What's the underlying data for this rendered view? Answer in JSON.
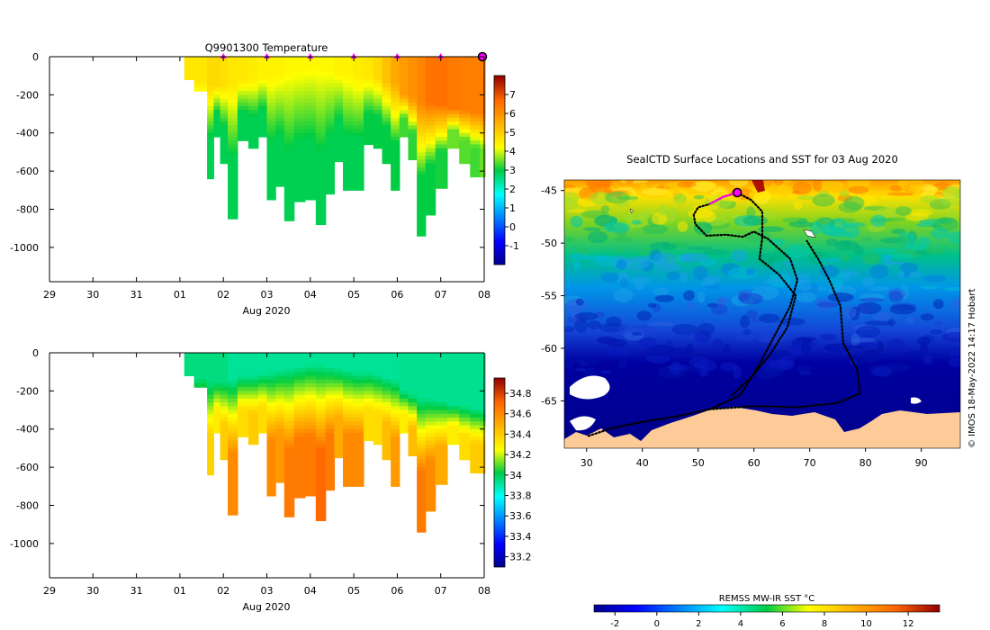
{
  "chart_data": [
    {
      "type": "heatmap",
      "title": "Q9901300  Temperature",
      "xlabel": "Aug 2020",
      "ylabel": "",
      "x_tick_labels": [
        "29",
        "30",
        "31",
        "01",
        "02",
        "03",
        "04",
        "05",
        "06",
        "07",
        "08"
      ],
      "y_ticks": [
        0,
        -200,
        -400,
        -600,
        -800,
        -1000
      ],
      "ylim": [
        -1180,
        0
      ],
      "colorbar": {
        "ticks": [
          7,
          6,
          5,
          4,
          3,
          2,
          1,
          0,
          -1
        ],
        "range": [
          -2,
          8
        ]
      },
      "surface_markers_days": [
        4,
        5,
        6,
        7,
        8,
        9
      ],
      "current_position_day": 10,
      "profiles": [
        {
          "day": 3.1,
          "depth": 120,
          "surface": 4.6,
          "deep": 4.0,
          "mixed": 120
        },
        {
          "day": 3.55,
          "depth": 180,
          "surface": 4.6,
          "deep": 3.9,
          "mixed": 140
        },
        {
          "day": 3.7,
          "depth": 640,
          "surface": 4.8,
          "deep": 2.9,
          "mixed": 160
        },
        {
          "day": 3.85,
          "depth": 420,
          "surface": 4.8,
          "deep": 2.9,
          "mixed": 150
        },
        {
          "day": 4.0,
          "depth": 560,
          "surface": 4.7,
          "deep": 2.9,
          "mixed": 150
        },
        {
          "day": 4.2,
          "depth": 850,
          "surface": 4.6,
          "deep": 2.9,
          "mixed": 140
        },
        {
          "day": 4.45,
          "depth": 440,
          "surface": 4.6,
          "deep": 2.9,
          "mixed": 120
        },
        {
          "day": 4.7,
          "depth": 480,
          "surface": 4.5,
          "deep": 2.9,
          "mixed": 120
        },
        {
          "day": 4.9,
          "depth": 420,
          "surface": 4.4,
          "deep": 2.9,
          "mixed": 110
        },
        {
          "day": 5.1,
          "depth": 750,
          "surface": 4.4,
          "deep": 2.9,
          "mixed": 100
        },
        {
          "day": 5.3,
          "depth": 680,
          "surface": 4.4,
          "deep": 2.9,
          "mixed": 90
        },
        {
          "day": 5.5,
          "depth": 860,
          "surface": 4.3,
          "deep": 2.9,
          "mixed": 80
        },
        {
          "day": 5.75,
          "depth": 760,
          "surface": 4.3,
          "deep": 2.9,
          "mixed": 70
        },
        {
          "day": 6.0,
          "depth": 750,
          "surface": 4.3,
          "deep": 2.9,
          "mixed": 60
        },
        {
          "day": 6.25,
          "depth": 880,
          "surface": 4.3,
          "deep": 2.9,
          "mixed": 60
        },
        {
          "day": 6.45,
          "depth": 720,
          "surface": 4.3,
          "deep": 2.9,
          "mixed": 70
        },
        {
          "day": 6.65,
          "depth": 550,
          "surface": 4.4,
          "deep": 2.9,
          "mixed": 80
        },
        {
          "day": 6.85,
          "depth": 700,
          "surface": 4.4,
          "deep": 2.9,
          "mixed": 90
        },
        {
          "day": 7.1,
          "depth": 700,
          "surface": 4.5,
          "deep": 2.9,
          "mixed": 100
        },
        {
          "day": 7.35,
          "depth": 460,
          "surface": 4.6,
          "deep": 3.0,
          "mixed": 100
        },
        {
          "day": 7.55,
          "depth": 480,
          "surface": 4.8,
          "deep": 3.0,
          "mixed": 110
        },
        {
          "day": 7.75,
          "depth": 560,
          "surface": 5.2,
          "deep": 3.0,
          "mixed": 130
        },
        {
          "day": 7.95,
          "depth": 700,
          "surface": 5.6,
          "deep": 3.0,
          "mixed": 140
        },
        {
          "day": 8.15,
          "depth": 420,
          "surface": 5.8,
          "deep": 3.3,
          "mixed": 200
        },
        {
          "day": 8.35,
          "depth": 540,
          "surface": 6.0,
          "deep": 3.2,
          "mixed": 220
        },
        {
          "day": 8.55,
          "depth": 940,
          "surface": 6.2,
          "deep": 3.0,
          "mixed": 240
        },
        {
          "day": 8.75,
          "depth": 830,
          "surface": 6.5,
          "deep": 3.0,
          "mixed": 240
        },
        {
          "day": 9.0,
          "depth": 690,
          "surface": 6.5,
          "deep": 3.1,
          "mixed": 250
        },
        {
          "day": 9.3,
          "depth": 480,
          "surface": 6.4,
          "deep": 3.5,
          "mixed": 270
        },
        {
          "day": 9.55,
          "depth": 560,
          "surface": 6.3,
          "deep": 3.4,
          "mixed": 280
        },
        {
          "day": 9.8,
          "depth": 630,
          "surface": 6.3,
          "deep": 3.3,
          "mixed": 290
        },
        {
          "day": 10.0,
          "depth": 630,
          "surface": 6.3,
          "deep": 3.5,
          "mixed": 300
        }
      ]
    },
    {
      "type": "heatmap",
      "title": "",
      "xlabel": "Aug 2020",
      "ylabel": "",
      "x_tick_labels": [
        "29",
        "30",
        "31",
        "01",
        "02",
        "03",
        "04",
        "05",
        "06",
        "07",
        "08"
      ],
      "y_ticks": [
        0,
        -200,
        -400,
        -600,
        -800,
        -1000
      ],
      "ylim": [
        -1180,
        0
      ],
      "colorbar": {
        "ticks": [
          "34.8",
          "34.6",
          "34.4",
          "34.2",
          "34",
          "33.8",
          "33.6",
          "33.4",
          "33.2"
        ],
        "range": [
          33.1,
          34.95
        ]
      },
      "profiles": [
        {
          "day": 3.1,
          "depth": 120,
          "surface": 33.95,
          "deep": 34.0,
          "mixed": 120
        },
        {
          "day": 3.55,
          "depth": 180,
          "surface": 33.95,
          "deep": 34.1,
          "mixed": 140
        },
        {
          "day": 3.7,
          "depth": 640,
          "surface": 33.95,
          "deep": 34.38,
          "mixed": 160
        },
        {
          "day": 3.85,
          "depth": 420,
          "surface": 33.95,
          "deep": 34.3,
          "mixed": 150
        },
        {
          "day": 4.0,
          "depth": 560,
          "surface": 33.95,
          "deep": 34.4,
          "mixed": 150
        },
        {
          "day": 4.2,
          "depth": 850,
          "surface": 33.92,
          "deep": 34.6,
          "mixed": 140
        },
        {
          "day": 4.45,
          "depth": 440,
          "surface": 33.92,
          "deep": 34.35,
          "mixed": 120
        },
        {
          "day": 4.7,
          "depth": 480,
          "surface": 33.92,
          "deep": 34.4,
          "mixed": 120
        },
        {
          "day": 4.9,
          "depth": 420,
          "surface": 33.92,
          "deep": 34.35,
          "mixed": 110
        },
        {
          "day": 5.1,
          "depth": 750,
          "surface": 33.92,
          "deep": 34.6,
          "mixed": 100
        },
        {
          "day": 5.3,
          "depth": 680,
          "surface": 33.92,
          "deep": 34.55,
          "mixed": 90
        },
        {
          "day": 5.5,
          "depth": 860,
          "surface": 33.92,
          "deep": 34.65,
          "mixed": 80
        },
        {
          "day": 5.75,
          "depth": 760,
          "surface": 33.92,
          "deep": 34.65,
          "mixed": 70
        },
        {
          "day": 6.0,
          "depth": 750,
          "surface": 33.92,
          "deep": 34.65,
          "mixed": 60
        },
        {
          "day": 6.25,
          "depth": 880,
          "surface": 33.92,
          "deep": 34.7,
          "mixed": 60
        },
        {
          "day": 6.45,
          "depth": 720,
          "surface": 33.92,
          "deep": 34.65,
          "mixed": 70
        },
        {
          "day": 6.65,
          "depth": 550,
          "surface": 33.92,
          "deep": 34.5,
          "mixed": 80
        },
        {
          "day": 6.85,
          "depth": 700,
          "surface": 33.92,
          "deep": 34.6,
          "mixed": 90
        },
        {
          "day": 7.1,
          "depth": 700,
          "surface": 33.92,
          "deep": 34.6,
          "mixed": 100
        },
        {
          "day": 7.35,
          "depth": 460,
          "surface": 33.92,
          "deep": 34.35,
          "mixed": 100
        },
        {
          "day": 7.55,
          "depth": 480,
          "surface": 33.92,
          "deep": 34.35,
          "mixed": 110
        },
        {
          "day": 7.75,
          "depth": 560,
          "surface": 33.92,
          "deep": 34.45,
          "mixed": 130
        },
        {
          "day": 7.95,
          "depth": 700,
          "surface": 33.92,
          "deep": 34.55,
          "mixed": 140
        },
        {
          "day": 8.15,
          "depth": 420,
          "surface": 33.93,
          "deep": 34.3,
          "mixed": 200
        },
        {
          "day": 8.35,
          "depth": 540,
          "surface": 33.93,
          "deep": 34.45,
          "mixed": 220
        },
        {
          "day": 8.55,
          "depth": 940,
          "surface": 33.93,
          "deep": 34.65,
          "mixed": 240
        },
        {
          "day": 8.75,
          "depth": 830,
          "surface": 33.93,
          "deep": 34.6,
          "mixed": 240
        },
        {
          "day": 9.0,
          "depth": 690,
          "surface": 33.93,
          "deep": 34.5,
          "mixed": 250
        },
        {
          "day": 9.3,
          "depth": 480,
          "surface": 33.93,
          "deep": 34.3,
          "mixed": 270
        },
        {
          "day": 9.55,
          "depth": 560,
          "surface": 33.93,
          "deep": 34.35,
          "mixed": 280
        },
        {
          "day": 9.8,
          "depth": 630,
          "surface": 33.93,
          "deep": 34.4,
          "mixed": 290
        },
        {
          "day": 10.0,
          "depth": 630,
          "surface": 33.93,
          "deep": 34.4,
          "mixed": 300
        }
      ]
    },
    {
      "type": "heatmap",
      "title": "SealCTD Surface Locations and SST for 03 Aug 2020",
      "xlabel": "",
      "ylabel": "",
      "x_ticks": [
        30,
        40,
        50,
        60,
        70,
        80,
        90
      ],
      "y_ticks": [
        -45,
        -50,
        -55,
        -60,
        -65
      ],
      "xlim": [
        26,
        97
      ],
      "ylim": [
        -69.5,
        -44
      ],
      "colorbar": {
        "label": "REMSS MW-IR SST °C",
        "ticks": [
          -2,
          0,
          2,
          4,
          6,
          8,
          10,
          12
        ],
        "range": [
          -3,
          13.5
        ]
      },
      "credit": "© IMOS 18-May-2022 14:17 Hobart",
      "track": [
        [
          57.0,
          -45.2
        ],
        [
          54.5,
          -45.6
        ],
        [
          52.0,
          -46.3
        ],
        [
          50.0,
          -46.6
        ],
        [
          49.2,
          -47.3
        ],
        [
          49.5,
          -48.2
        ],
        [
          51.5,
          -49.3
        ],
        [
          55.0,
          -49.2
        ],
        [
          58.0,
          -49.4
        ],
        [
          60.0,
          -48.9
        ],
        [
          62.5,
          -49.6
        ],
        [
          66.5,
          -51.5
        ],
        [
          67.8,
          -53.5
        ],
        [
          66.5,
          -56.0
        ],
        [
          64.0,
          -58.5
        ],
        [
          61.0,
          -61.5
        ],
        [
          57.5,
          -64.5
        ],
        [
          52.0,
          -65.8
        ],
        [
          46.0,
          -66.5
        ],
        [
          40.0,
          -67.0
        ],
        [
          34.5,
          -67.6
        ],
        [
          30.0,
          -68.4
        ]
      ],
      "track2": [
        [
          57.0,
          -45.2
        ],
        [
          59.5,
          -45.9
        ],
        [
          61.5,
          -47.0
        ],
        [
          61.5,
          -49.5
        ],
        [
          61.0,
          -51.5
        ],
        [
          64.5,
          -53.0
        ],
        [
          67.5,
          -55.0
        ],
        [
          66.0,
          -58.0
        ],
        [
          63.0,
          -60.5
        ],
        [
          60.0,
          -62.5
        ],
        [
          56.0,
          -64.5
        ]
      ],
      "track3": [
        [
          52.0,
          -65.8
        ],
        [
          60.0,
          -65.5
        ],
        [
          68.0,
          -65.6
        ],
        [
          75.0,
          -65.2
        ],
        [
          79.0,
          -64.3
        ],
        [
          78.5,
          -62.0
        ],
        [
          76.0,
          -59.5
        ],
        [
          75.5,
          -56.0
        ],
        [
          73.5,
          -53.5
        ],
        [
          71.5,
          -51.5
        ],
        [
          69.5,
          -49.8
        ]
      ],
      "current_position": [
        57.0,
        -45.2
      ]
    }
  ]
}
